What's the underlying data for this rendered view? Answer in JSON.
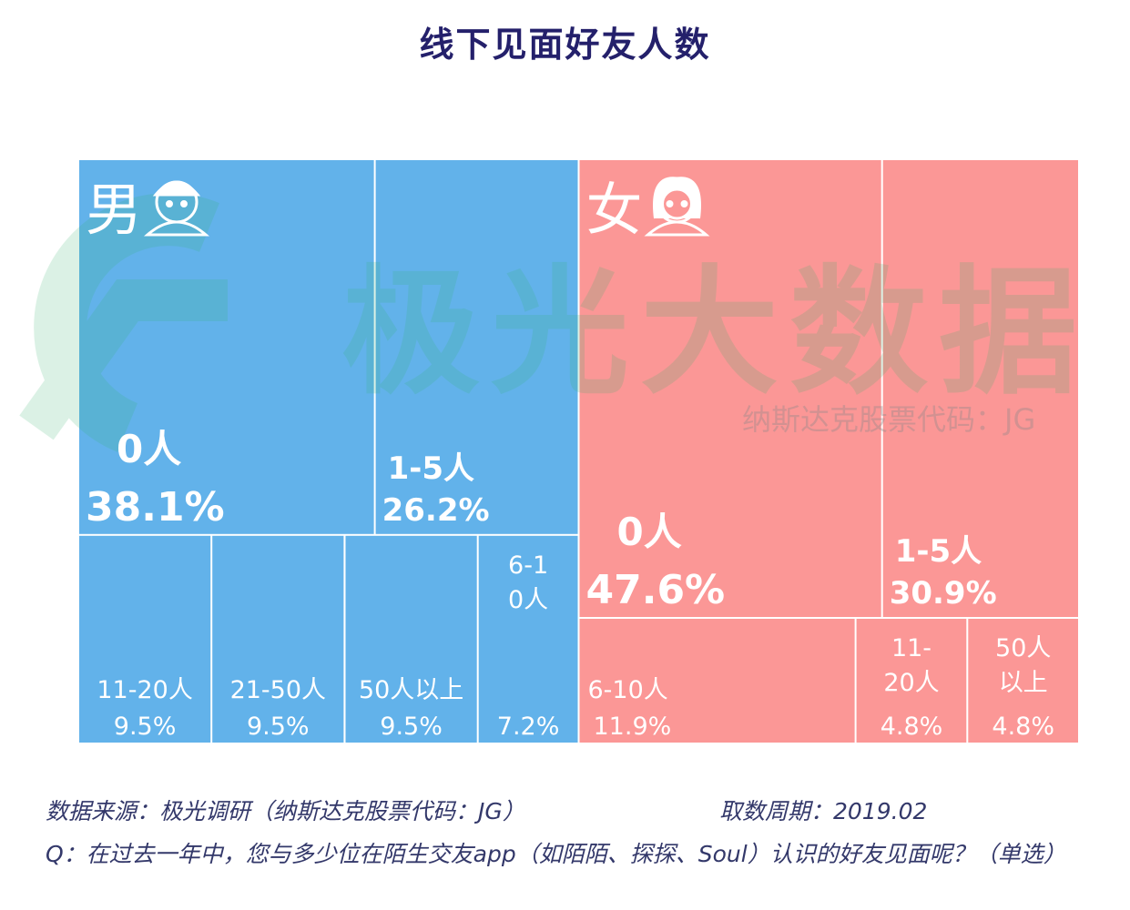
{
  "title": "线下见面好友人数",
  "watermark": {
    "brand": "极光大数据",
    "sub": "纳斯达克股票代码：JG",
    "color": "#2fb36a"
  },
  "chart_data": {
    "type": "treemap",
    "title": "线下见面好友人数",
    "colors": {
      "male": "#62b2ea",
      "female": "#fb9796",
      "divider": "#ffffff"
    },
    "groups": [
      {
        "name": "男",
        "icon": "boy-face-icon",
        "items": [
          {
            "label": "0人",
            "value": 38.1,
            "value_text": "38.1%"
          },
          {
            "label": "1-5人",
            "value": 26.2,
            "value_text": "26.2%"
          },
          {
            "label": "11-20人",
            "value": 9.5,
            "value_text": "9.5%"
          },
          {
            "label": "21-50人",
            "value": 9.5,
            "value_text": "9.5%"
          },
          {
            "label": "50人以上",
            "value": 9.5,
            "value_text": "9.5%"
          },
          {
            "label": "6-10人",
            "value": 7.2,
            "value_text": "7.2%"
          }
        ]
      },
      {
        "name": "女",
        "icon": "girl-face-icon",
        "items": [
          {
            "label": "0人",
            "value": 47.6,
            "value_text": "47.6%"
          },
          {
            "label": "1-5人",
            "value": 30.9,
            "value_text": "30.9%"
          },
          {
            "label": "6-10人",
            "value": 11.9,
            "value_text": "11.9%"
          },
          {
            "label": "11-20人",
            "value": 4.8,
            "value_text": "4.8%"
          },
          {
            "label": "50人以上",
            "value": 4.8,
            "value_text": "4.8%"
          }
        ]
      }
    ]
  },
  "footer": {
    "source": "数据来源：极光调研（纳斯达克股票代码：JG）",
    "period": "取数周期：2019.02",
    "question": "Q：在过去一年中，您与多少位在陌生交友app（如陌陌、探探、Soul）认识的好友见面呢？（单选）"
  }
}
